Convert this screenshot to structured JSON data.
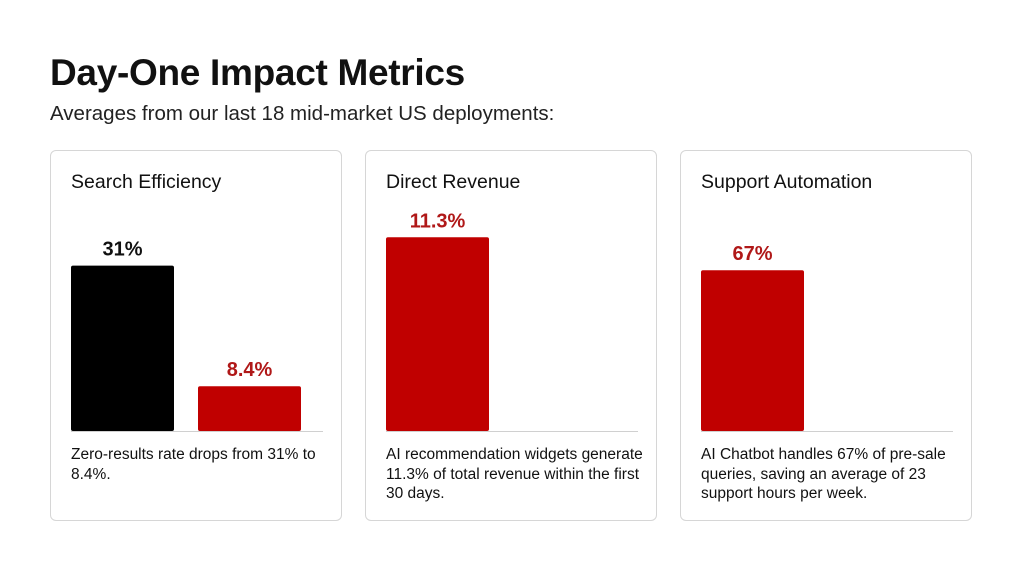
{
  "header": {
    "title": "Day-One Impact Metrics",
    "subtitle": "Averages from our last 18 mid-market US deployments:"
  },
  "colors": {
    "red": "#c00000",
    "black": "#000000",
    "red_label": "#b01818"
  },
  "chart_data": [
    {
      "type": "bar",
      "title": "Search Efficiency",
      "values": [
        31,
        8.4
      ],
      "labels": [
        "31%",
        "8.4%"
      ],
      "colors": [
        "#000000",
        "#c00000"
      ],
      "label_colors": [
        "#111111",
        "#b01818"
      ],
      "ylim": [
        0,
        45
      ],
      "caption": "Zero-results rate drops from 31% to 8.4%."
    },
    {
      "type": "bar",
      "title": "Direct Revenue",
      "values": [
        11.3
      ],
      "labels": [
        "11.3%"
      ],
      "colors": [
        "#c00000"
      ],
      "label_colors": [
        "#b01818"
      ],
      "ylim": [
        0,
        14
      ],
      "caption": "AI recommendation widgets generate 11.3% of total revenue within the first 30 days."
    },
    {
      "type": "bar",
      "title": "Support Automation",
      "values": [
        67
      ],
      "labels": [
        "67%"
      ],
      "colors": [
        "#c00000"
      ],
      "label_colors": [
        "#b01818"
      ],
      "ylim": [
        0,
        100
      ],
      "caption": "AI Chatbot handles 67% of pre-sale queries, saving an average of 23 support hours per week."
    }
  ]
}
